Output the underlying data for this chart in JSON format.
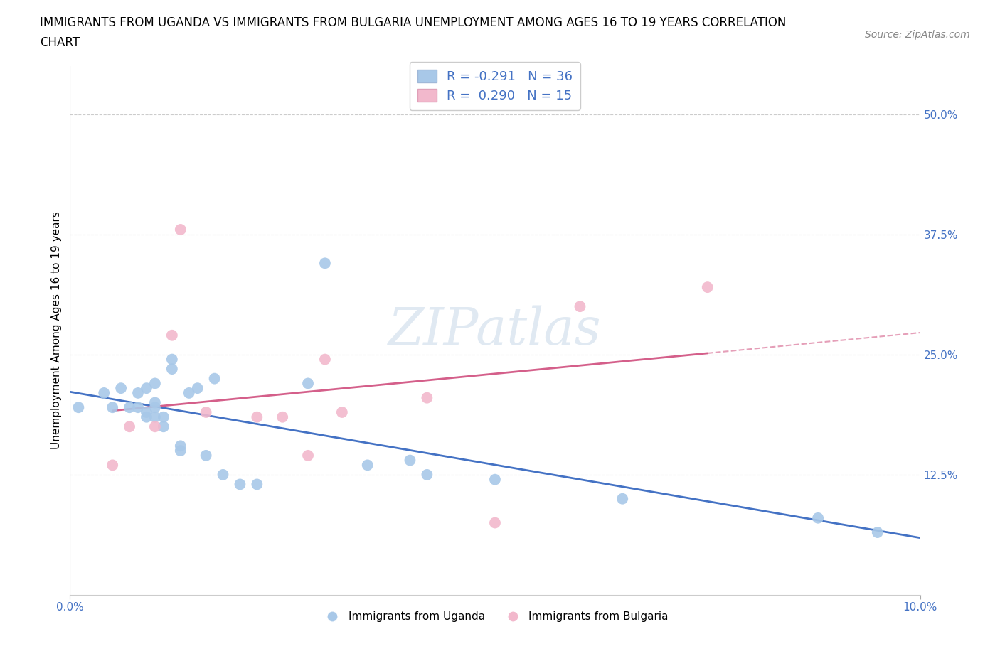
{
  "title_line1": "IMMIGRANTS FROM UGANDA VS IMMIGRANTS FROM BULGARIA UNEMPLOYMENT AMONG AGES 16 TO 19 YEARS CORRELATION",
  "title_line2": "CHART",
  "source": "Source: ZipAtlas.com",
  "ylabel": "Unemployment Among Ages 16 to 19 years",
  "xlim": [
    0.0,
    0.1
  ],
  "ylim": [
    0.0,
    0.55
  ],
  "legend_r1": "R = -0.291   N = 36",
  "legend_r2": "R =  0.290   N = 15",
  "color_uganda": "#a8c8e8",
  "color_bulgaria": "#f2b8cc",
  "line_color_uganda": "#4472c4",
  "line_color_bulgaria": "#d45f8a",
  "watermark_text": "ZIPatlas",
  "uganda_x": [
    0.001,
    0.004,
    0.005,
    0.006,
    0.007,
    0.008,
    0.008,
    0.009,
    0.009,
    0.009,
    0.01,
    0.01,
    0.01,
    0.01,
    0.011,
    0.011,
    0.012,
    0.012,
    0.013,
    0.013,
    0.014,
    0.015,
    0.016,
    0.017,
    0.018,
    0.02,
    0.022,
    0.028,
    0.03,
    0.035,
    0.04,
    0.042,
    0.05,
    0.065,
    0.088,
    0.095
  ],
  "uganda_y": [
    0.195,
    0.21,
    0.195,
    0.215,
    0.195,
    0.21,
    0.195,
    0.185,
    0.19,
    0.215,
    0.185,
    0.195,
    0.2,
    0.22,
    0.175,
    0.185,
    0.245,
    0.235,
    0.155,
    0.15,
    0.21,
    0.215,
    0.145,
    0.225,
    0.125,
    0.115,
    0.115,
    0.22,
    0.345,
    0.135,
    0.14,
    0.125,
    0.12,
    0.1,
    0.08,
    0.065
  ],
  "bulgaria_x": [
    0.005,
    0.007,
    0.01,
    0.012,
    0.013,
    0.016,
    0.022,
    0.025,
    0.028,
    0.03,
    0.032,
    0.042,
    0.05,
    0.06,
    0.075
  ],
  "bulgaria_y": [
    0.135,
    0.175,
    0.175,
    0.27,
    0.38,
    0.19,
    0.185,
    0.185,
    0.145,
    0.245,
    0.19,
    0.205,
    0.075,
    0.3,
    0.32
  ],
  "grid_color": "#cccccc",
  "bg_color": "#ffffff",
  "title_fontsize": 12,
  "label_fontsize": 11,
  "tick_fontsize": 11,
  "source_fontsize": 10
}
